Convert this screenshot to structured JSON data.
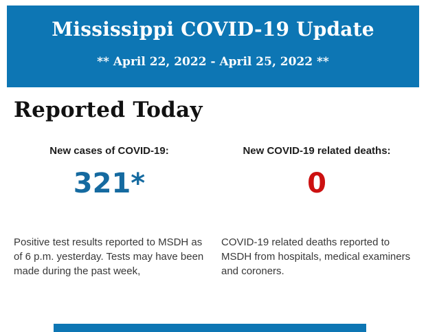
{
  "colors": {
    "banner_blue": "#0d76b4",
    "cases_value_blue": "#156aa0",
    "deaths_value_red": "#cc1111",
    "body_text": "#383838"
  },
  "header": {
    "title": "Mississippi COVID-19 Update",
    "date_range": "** April 22, 2022 - April 25, 2022 **"
  },
  "section": {
    "heading": "Reported Today",
    "cases": {
      "label": "New cases of COVID-19:",
      "value": "321*",
      "description": "Positive test results reported to MSDH as of 6 p.m. yesterday. Tests may have been made during the past week,"
    },
    "deaths": {
      "label": "New COVID-19 related deaths:",
      "value": "0",
      "description": "COVID-19 related deaths reported to MSDH from hospitals, medical examiners and coroners."
    }
  }
}
